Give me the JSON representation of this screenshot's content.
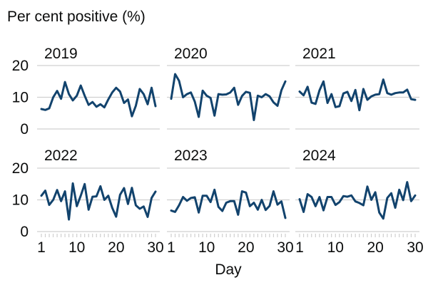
{
  "chart_data": {
    "type": "line",
    "title": "Per cent positive (%)",
    "xlabel": "Day",
    "ylabel": "",
    "x": [
      1,
      2,
      3,
      4,
      5,
      6,
      7,
      8,
      9,
      10,
      11,
      12,
      13,
      14,
      15,
      16,
      17,
      18,
      19,
      20,
      21,
      22,
      23,
      24,
      25,
      26,
      27,
      28,
      29,
      30
    ],
    "xticks": [
      1,
      10,
      20,
      30
    ],
    "yticks": [
      0,
      10,
      20
    ],
    "ylim": [
      0,
      20
    ],
    "xlim": [
      1,
      30
    ],
    "grid": true,
    "facets": [
      {
        "label": "2019",
        "values": [
          6.3,
          6.0,
          6.5,
          10.0,
          12.0,
          9.5,
          14.8,
          11.0,
          9.0,
          10.5,
          13.7,
          10.5,
          7.6,
          8.5,
          7.0,
          7.8,
          6.8,
          9.3,
          11.5,
          13.0,
          11.8,
          8.2,
          9.3,
          4.0,
          7.3,
          12.6,
          11.0,
          7.8,
          13.0,
          7.2
        ]
      },
      {
        "label": "2020",
        "values": [
          9.5,
          17.3,
          15.2,
          10.0,
          11.0,
          11.5,
          8.6,
          3.8,
          12.1,
          10.5,
          9.8,
          4.2,
          11.0,
          10.8,
          10.9,
          11.5,
          13.0,
          7.6,
          10.4,
          11.7,
          11.4,
          2.8,
          10.5,
          10.0,
          11.0,
          10.3,
          8.4,
          7.3,
          12.2,
          15.0
        ]
      },
      {
        "label": "2021",
        "values": [
          11.8,
          10.6,
          13.3,
          8.3,
          7.9,
          12.2,
          15.0,
          8.2,
          11.0,
          6.9,
          7.2,
          11.2,
          11.7,
          8.8,
          12.3,
          5.9,
          12.6,
          9.2,
          10.3,
          10.8,
          11.0,
          15.6,
          11.3,
          10.8,
          11.3,
          11.5,
          11.5,
          12.4,
          9.4,
          9.2
        ]
      },
      {
        "label": "2022",
        "values": [
          11.3,
          12.9,
          8.4,
          10.0,
          13.1,
          9.6,
          12.7,
          3.8,
          15.2,
          8.0,
          11.3,
          15.0,
          6.9,
          11.0,
          11.1,
          14.3,
          10.0,
          11.3,
          7.5,
          4.7,
          11.6,
          13.7,
          8.7,
          13.8,
          8.3,
          7.2,
          7.9,
          4.6,
          10.6,
          12.6
        ]
      },
      {
        "label": "2023",
        "values": [
          6.6,
          6.2,
          8.3,
          10.9,
          9.7,
          10.6,
          10.8,
          6.0,
          11.3,
          11.3,
          9.3,
          13.2,
          7.8,
          6.5,
          9.1,
          9.6,
          9.6,
          5.3,
          12.7,
          12.3,
          8.0,
          9.1,
          6.9,
          10.0,
          6.8,
          8.1,
          12.7,
          8.5,
          9.5,
          4.3
        ]
      },
      {
        "label": "2024",
        "values": [
          10.2,
          6.2,
          11.8,
          10.9,
          8.0,
          10.9,
          6.7,
          10.9,
          10.9,
          8.4,
          9.3,
          11.2,
          11.0,
          11.4,
          9.5,
          9.0,
          8.3,
          14.2,
          10.0,
          12.4,
          6.0,
          4.1,
          10.6,
          12.1,
          7.5,
          13.2,
          9.9,
          15.6,
          9.6,
          11.4
        ]
      }
    ]
  }
}
